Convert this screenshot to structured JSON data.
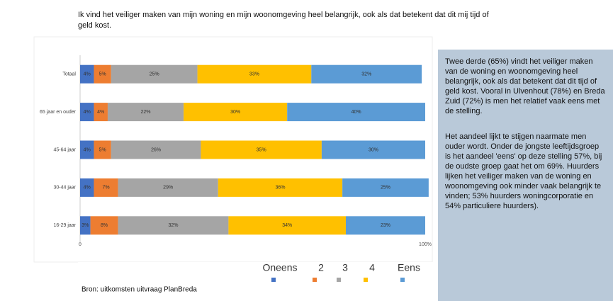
{
  "chart_data": {
    "type": "stacked-bar-horizontal",
    "title": "Ik vind het veiliger maken van mijn woning en mijn woonomgeving heel belangrijk, ook als dat betekent dat dit mij tijd of geld kost.",
    "categories": [
      "Totaal",
      "65 jaar en ouder",
      "45-64 jaar",
      "30-44 jaar",
      "16-29 jaar"
    ],
    "series": [
      {
        "name": "Oneens",
        "color": "#4472c4",
        "values": [
          4,
          4,
          4,
          4,
          3
        ],
        "value_labels": [
          "4%",
          "4%",
          "4%",
          "4%",
          "3%"
        ]
      },
      {
        "name": "2",
        "color": "#ed7d31",
        "values": [
          5,
          4,
          5,
          7,
          8
        ],
        "value_labels": [
          "5%",
          "4%",
          "5%",
          "7%",
          "8%"
        ]
      },
      {
        "name": "3",
        "color": "#a5a5a5",
        "values": [
          25,
          22,
          26,
          29,
          32
        ],
        "value_labels": [
          "25%",
          "22%",
          "26%",
          "29%",
          "32%"
        ]
      },
      {
        "name": "4",
        "color": "#ffc000",
        "values": [
          33,
          30,
          35,
          36,
          34
        ],
        "value_labels": [
          "33%",
          "30%",
          "35%",
          "36%",
          "34%"
        ]
      },
      {
        "name": "Eens",
        "color": "#5b9bd5",
        "values": [
          32,
          40,
          30,
          25,
          23
        ],
        "value_labels": [
          "32%",
          "40%",
          "30%",
          "25%",
          "23%"
        ]
      }
    ],
    "xlim": [
      0,
      100
    ],
    "xticks": [
      0,
      {
        "value": 100,
        "label": "100%"
      }
    ],
    "source": "Bron: uitkomsten uitvraag PlanBreda",
    "annotations": [
      "Twee derde (65%) vindt het veiliger maken van de woning en woonomgeving heel belangrijk, ook als dat betekent dat dit tijd of geld kost. Vooral in Ulvenhout (78%) en Breda Zuid (72%) is men het relatief vaak eens met de stelling.",
      "Het aandeel lijkt te stijgen naarmate men ouder wordt. Onder de jongste leeftijdsgroep is het aandeel 'eens' op deze stelling 57%, bij de oudste groep gaat het om 69%. Huurders lijken het veiliger maken van de woning en woonomgeving ook minder vaak belangrijk te vinden; 53% huurders woningcorporatie en 54% particuliere huurders)."
    ]
  }
}
